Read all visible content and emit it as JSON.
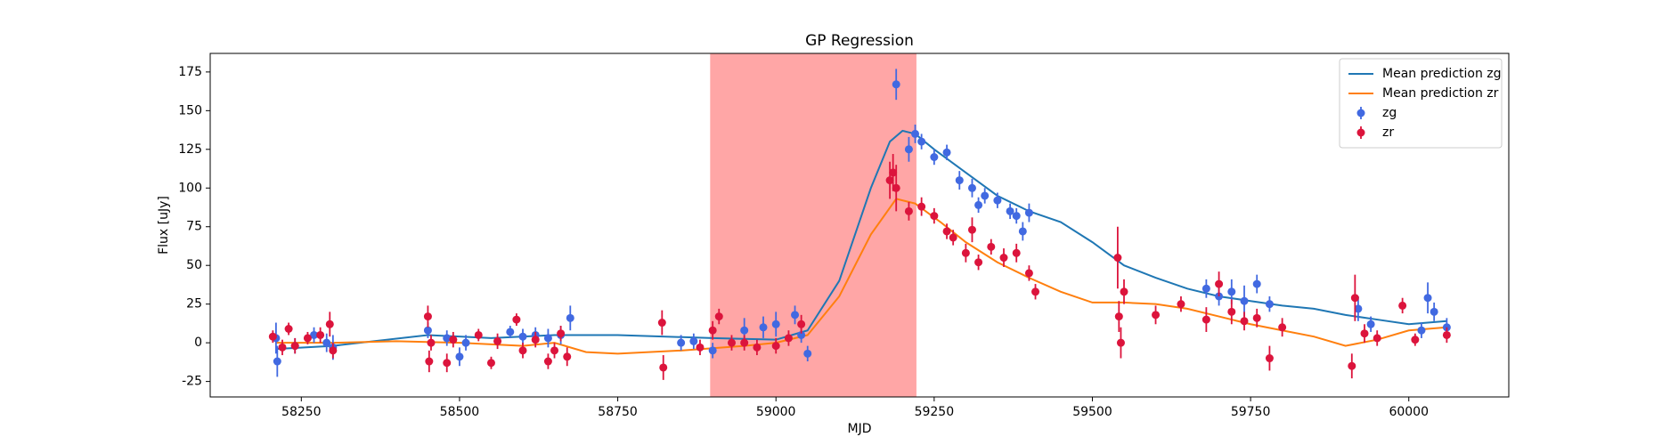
{
  "chart_data": {
    "type": "gp-regression",
    "title": "GP Regression",
    "x_label": "MJD",
    "y_label": "Flux [uJy]",
    "xlim": [
      58106,
      60158
    ],
    "ylim": [
      -35,
      187
    ],
    "xticks": [
      58250,
      58500,
      58750,
      59000,
      59250,
      59500,
      59750,
      60000
    ],
    "yticks": [
      -25,
      0,
      25,
      50,
      75,
      100,
      125,
      150,
      175
    ],
    "span": {
      "x": [
        58896,
        59222
      ],
      "color": "#ff0000",
      "opacity": 0.35
    },
    "legend": "upper right",
    "lines": [
      {
        "name": "Mean prediction zg",
        "color": "#1f77b4",
        "x": [
          58210,
          58300,
          58450,
          58550,
          58650,
          58750,
          58900,
          59000,
          59050,
          59100,
          59150,
          59180,
          59200,
          59220,
          59250,
          59300,
          59350,
          59400,
          59450,
          59500,
          59550,
          59600,
          59650,
          59700,
          59750,
          59800,
          59850,
          59900,
          59950,
          60000,
          60060
        ],
        "values": [
          -4,
          -2,
          5,
          3,
          5,
          5,
          3,
          2,
          8,
          40,
          100,
          130,
          137,
          135,
          125,
          110,
          95,
          85,
          78,
          65,
          50,
          42,
          35,
          30,
          27,
          24,
          22,
          18,
          15,
          12,
          14
        ]
      },
      {
        "name": "Mean prediction zr",
        "color": "#ff7f0e",
        "x": [
          58210,
          58300,
          58400,
          58500,
          58600,
          58650,
          58700,
          58750,
          58850,
          58950,
          59000,
          59050,
          59100,
          59150,
          59190,
          59220,
          59260,
          59300,
          59350,
          59400,
          59450,
          59500,
          59550,
          59600,
          59650,
          59700,
          59750,
          59800,
          59850,
          59900,
          59950,
          60000,
          60060
        ],
        "values": [
          0,
          0,
          1,
          0,
          -2,
          0,
          -6,
          -7,
          -5,
          -2,
          0,
          5,
          30,
          70,
          93,
          90,
          78,
          65,
          52,
          42,
          33,
          26,
          26,
          25,
          22,
          17,
          12,
          8,
          4,
          -2,
          2,
          8,
          10
        ]
      }
    ],
    "series": [
      {
        "name": "zg",
        "color": "#4169e1",
        "x": [
          58210,
          58212,
          58240,
          58270,
          58290,
          58300,
          58450,
          58480,
          58500,
          58510,
          58580,
          58600,
          58620,
          58640,
          58660,
          58675,
          58850,
          58870,
          58900,
          58950,
          58980,
          59000,
          59030,
          59040,
          59050,
          59190,
          59210,
          59220,
          59230,
          59250,
          59270,
          59290,
          59310,
          59320,
          59330,
          59350,
          59370,
          59380,
          59390,
          59400,
          59680,
          59700,
          59720,
          59740,
          59760,
          59780,
          59920,
          59940,
          60020,
          60030,
          60040,
          60060
        ],
        "values": [
          3,
          -12,
          -2,
          5,
          0,
          -3,
          8,
          3,
          -9,
          0,
          7,
          4,
          5,
          3,
          5,
          16,
          0,
          1,
          -5,
          8,
          10,
          12,
          18,
          5,
          -7,
          167,
          125,
          135,
          130,
          120,
          123,
          105,
          100,
          89,
          95,
          92,
          85,
          82,
          72,
          84,
          35,
          30,
          33,
          27,
          38,
          25,
          22,
          12,
          8,
          29,
          20,
          10
        ],
        "errors": [
          10,
          10,
          5,
          5,
          6,
          8,
          5,
          5,
          6,
          5,
          4,
          5,
          5,
          6,
          6,
          8,
          5,
          5,
          5,
          8,
          7,
          8,
          6,
          5,
          5,
          10,
          8,
          6,
          5,
          5,
          5,
          6,
          6,
          5,
          5,
          5,
          5,
          5,
          6,
          6,
          6,
          6,
          8,
          10,
          6,
          5,
          8,
          5,
          5,
          10,
          6,
          6
        ]
      },
      {
        "name": "zr",
        "color": "#dc143c",
        "x": [
          58205,
          58220,
          58230,
          58240,
          58260,
          58280,
          58295,
          58300,
          58450,
          58452,
          58455,
          58480,
          58490,
          58530,
          58550,
          58560,
          58590,
          58600,
          58620,
          58640,
          58650,
          58660,
          58670,
          58820,
          58822,
          58880,
          58900,
          58910,
          58930,
          58950,
          58970,
          59000,
          59020,
          59040,
          59180,
          59185,
          59190,
          59210,
          59230,
          59250,
          59270,
          59280,
          59300,
          59310,
          59320,
          59340,
          59360,
          59380,
          59400,
          59410,
          59540,
          59542,
          59545,
          59550,
          59600,
          59640,
          59680,
          59700,
          59720,
          59740,
          59760,
          59780,
          59800,
          59910,
          59915,
          59930,
          59950,
          59990,
          60010,
          60060
        ],
        "values": [
          4,
          -3,
          9,
          -2,
          3,
          5,
          12,
          -5,
          17,
          -12,
          0,
          -13,
          2,
          5,
          -13,
          1,
          15,
          -5,
          2,
          -12,
          -5,
          6,
          -9,
          13,
          -16,
          -3,
          8,
          17,
          0,
          0,
          -3,
          -2,
          3,
          12,
          105,
          110,
          100,
          85,
          88,
          82,
          72,
          68,
          58,
          73,
          52,
          62,
          55,
          58,
          45,
          33,
          55,
          17,
          0,
          33,
          18,
          25,
          15,
          38,
          20,
          14,
          16,
          -10,
          10,
          -15,
          29,
          6,
          3,
          24,
          2,
          5
        ],
        "errors": [
          4,
          5,
          4,
          5,
          4,
          5,
          8,
          5,
          7,
          7,
          5,
          6,
          5,
          4,
          4,
          5,
          4,
          5,
          5,
          5,
          5,
          5,
          6,
          8,
          8,
          5,
          6,
          5,
          5,
          5,
          5,
          5,
          5,
          6,
          12,
          12,
          15,
          6,
          6,
          5,
          5,
          5,
          6,
          8,
          5,
          5,
          6,
          6,
          5,
          5,
          20,
          10,
          10,
          8,
          6,
          5,
          8,
          8,
          8,
          6,
          6,
          8,
          6,
          8,
          15,
          6,
          5,
          5,
          4,
          5
        ]
      }
    ]
  }
}
